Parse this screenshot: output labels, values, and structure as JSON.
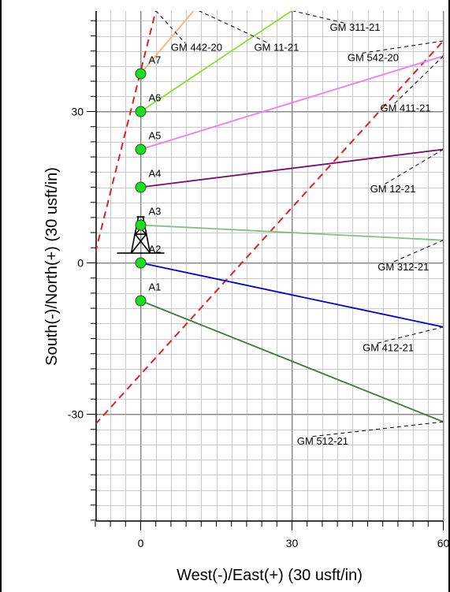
{
  "chart_data": {
    "type": "line",
    "xlabel": "West(-)/East(+) (30 usft/in)",
    "ylabel": "South(-)/North(+) (30 usft/in)",
    "xlim": [
      -9,
      60
    ],
    "ylim": [
      -51,
      50
    ],
    "xticks": [
      0,
      30,
      60
    ],
    "yticks": [
      -30,
      0,
      30
    ],
    "grid": true,
    "tower": {
      "x": 0,
      "y": 3.5
    },
    "wells": [
      {
        "name": "A1",
        "x": 0,
        "y": -7.5
      },
      {
        "name": "A2",
        "x": 0,
        "y": 0
      },
      {
        "name": "A3",
        "x": 0,
        "y": 7.5
      },
      {
        "name": "A4",
        "x": 0,
        "y": 15
      },
      {
        "name": "A5",
        "x": 0,
        "y": 22.5
      },
      {
        "name": "A6",
        "x": 0,
        "y": 30
      },
      {
        "name": "A7",
        "x": 0,
        "y": 37.5
      }
    ],
    "series": [
      {
        "name": "GM 512-21",
        "color": "#3a7d3a",
        "points": [
          [
            0,
            -7.5
          ],
          [
            60,
            -31.5
          ]
        ]
      },
      {
        "name": "GM 412-21",
        "color": "#0000e0",
        "points": [
          [
            0,
            0
          ],
          [
            60,
            -12.7
          ]
        ]
      },
      {
        "name": "GM 312-21",
        "color": "#7fc27f",
        "points": [
          [
            0,
            7.5
          ],
          [
            60,
            4.5
          ]
        ]
      },
      {
        "name": "GM 12-21",
        "color": "#7a0d7a",
        "points": [
          [
            0,
            15
          ],
          [
            60,
            22.5
          ]
        ]
      },
      {
        "name": "GM 542-20",
        "color": "#f279f2",
        "points": [
          [
            0,
            22.5
          ],
          [
            60,
            41
          ]
        ]
      },
      {
        "name": "GM 11-21",
        "color": "#88e02a",
        "points": [
          [
            0,
            30
          ],
          [
            30,
            50
          ]
        ]
      },
      {
        "name": "GM 442-20",
        "color": "#f5b27a",
        "points": [
          [
            0,
            37.5
          ],
          [
            10.5,
            50
          ]
        ]
      }
    ],
    "lease_lines": [
      {
        "color": "#e02020",
        "points": [
          [
            -9,
            2
          ],
          [
            3,
            50
          ]
        ]
      },
      {
        "color": "#e02020",
        "points": [
          [
            -9,
            -32
          ],
          [
            60,
            44
          ]
        ]
      }
    ],
    "callouts": [
      {
        "label": "GM 442-20",
        "anchor": [
          3,
          50
        ],
        "text_at": [
          6,
          42
        ]
      },
      {
        "label": "GM 11-21",
        "anchor": [
          11.5,
          50
        ],
        "text_at": [
          22.5,
          42
        ]
      },
      {
        "label": "GM 311-21",
        "anchor": [
          30,
          50
        ],
        "text_at": [
          37.5,
          46
        ]
      },
      {
        "label": "GM 542-20",
        "anchor": [
          60,
          44
        ],
        "text_at": [
          41,
          40
        ]
      },
      {
        "label": "GM 411-21",
        "anchor": [
          60,
          41
        ],
        "text_at": [
          47.5,
          30
        ]
      },
      {
        "label": "GM 12-21",
        "anchor": [
          60,
          22.5
        ],
        "text_at": [
          45.5,
          14
        ]
      },
      {
        "label": "GM 312-21",
        "anchor": [
          60,
          4.5
        ],
        "text_at": [
          47,
          -1.5
        ]
      },
      {
        "label": "GM 412-21",
        "anchor": [
          60,
          -12.7
        ],
        "text_at": [
          44,
          -17.5
        ]
      },
      {
        "label": "GM 512-21",
        "anchor": [
          60,
          -31.5
        ],
        "text_at": [
          31,
          -36
        ]
      }
    ]
  }
}
